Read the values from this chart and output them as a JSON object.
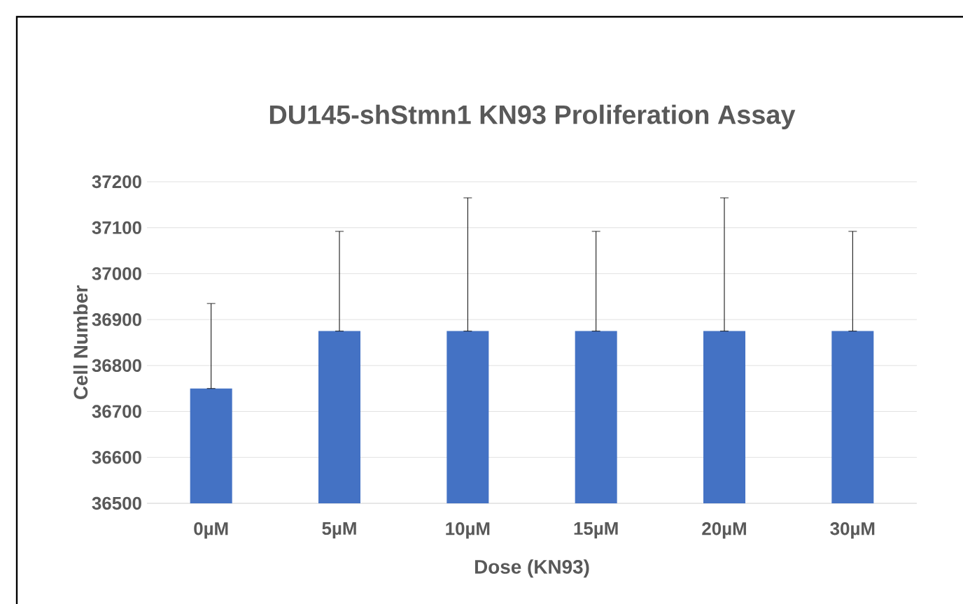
{
  "chart_data": {
    "type": "bar",
    "title": "DU145-shStmn1 KN93 Proliferation Assay",
    "xlabel": "Dose (KN93)",
    "ylabel": "Cell Number",
    "categories": [
      "0µM",
      "5µM",
      "10µM",
      "15µM",
      "20µM",
      "30µM"
    ],
    "values": [
      36750,
      36875,
      36875,
      36875,
      36875,
      36875
    ],
    "errors": [
      [
        36750,
        36935
      ],
      [
        36875,
        37092
      ],
      [
        36875,
        37165
      ],
      [
        36875,
        37092
      ],
      [
        36875,
        37165
      ],
      [
        36875,
        37092
      ]
    ],
    "color": "#4472c4",
    "ylim": [
      36500,
      37200
    ],
    "yticks": [
      36500,
      36600,
      36700,
      36800,
      36900,
      37000,
      37100,
      37200
    ],
    "grid": "y"
  }
}
